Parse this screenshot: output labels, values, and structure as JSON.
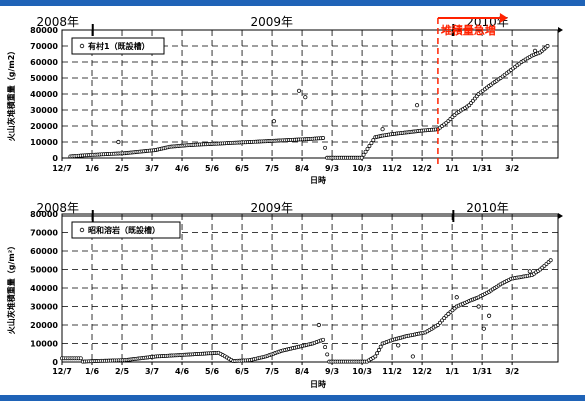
{
  "colors": {
    "band": "#1f63b7",
    "grid": "#000000",
    "marker": "#000000",
    "annotation": "#ff2200"
  },
  "years": [
    "2008年",
    "2009年",
    "2010年"
  ],
  "x_ticks": [
    "12/7",
    "1/6",
    "2/5",
    "3/7",
    "4/6",
    "5/6",
    "6/5",
    "7/5",
    "8/4",
    "9/3",
    "10/3",
    "11/2",
    "12/2",
    "1/1",
    "1/31",
    "3/2"
  ],
  "chart_data": [
    {
      "type": "scatter",
      "xlabel": "日時",
      "ylabel": "火山灰堆積重量（g/m2）",
      "legend": "有村1（既設槽）",
      "legend_position": "top-left",
      "ylim": [
        0,
        80000
      ],
      "y_ticks": [
        "0",
        "10000",
        "20000",
        "30000",
        "40000",
        "50000",
        "60000",
        "70000",
        "80000"
      ],
      "xlim": [
        "2008-12-07",
        "2010-03-27"
      ],
      "grid": true,
      "annotation": {
        "text": "堆積量急増",
        "date": "2009-12-02"
      },
      "series": [
        {
          "x": [
            "2008-12-15",
            "2008-12-25",
            "2009-01-06",
            "2009-01-20",
            "2009-02-05",
            "2009-02-20",
            "2009-03-07",
            "2009-03-20",
            "2009-04-06",
            "2009-04-20",
            "2009-05-06",
            "2009-05-20",
            "2009-06-05",
            "2009-06-20",
            "2009-07-05",
            "2009-07-20",
            "2009-08-04",
            "2009-08-14",
            "2009-08-18",
            "2009-09-03",
            "2009-09-20",
            "2009-10-03",
            "2009-10-10",
            "2009-10-20",
            "2009-11-02",
            "2009-11-15",
            "2009-12-02",
            "2009-12-10",
            "2009-12-20",
            "2010-01-01",
            "2010-01-10",
            "2010-01-20",
            "2010-01-31",
            "2010-02-10",
            "2010-02-20",
            "2010-03-02",
            "2010-03-10",
            "2010-03-17"
          ],
          "y": [
            1000,
            1500,
            2000,
            2500,
            3000,
            4000,
            5000,
            7000,
            8000,
            8500,
            9000,
            9500,
            10000,
            10500,
            11000,
            11500,
            12000,
            12500,
            200,
            200,
            200,
            13000,
            14000,
            15000,
            16000,
            17000,
            18000,
            22000,
            28000,
            33000,
            40000,
            45000,
            50000,
            55000,
            60000,
            64000,
            66000,
            70000
          ]
        }
      ],
      "outliers": {
        "x": [
          "2009-01-30",
          "2009-06-28",
          "2009-07-22",
          "2009-07-28",
          "2009-10-10",
          "2009-11-12",
          "2010-03-05"
        ],
        "y": [
          10000,
          23000,
          42000,
          38000,
          18000,
          33000,
          67000
        ]
      }
    },
    {
      "type": "scatter",
      "xlabel": "日時",
      "ylabel": "火山灰堆積重量（g/m²）",
      "legend": "昭和溶岩（既設槽）",
      "legend_position": "top-left",
      "ylim": [
        0,
        80000
      ],
      "y_ticks": [
        "0",
        "10000",
        "20000",
        "30000",
        "40000",
        "50000",
        "60000",
        "70000",
        "80000"
      ],
      "xlim": [
        "2008-12-07",
        "2010-03-27"
      ],
      "grid": true,
      "series": [
        {
          "x": [
            "2008-12-07",
            "2008-12-25",
            "2008-12-27",
            "2009-01-06",
            "2009-02-05",
            "2009-03-07",
            "2009-04-06",
            "2009-05-06",
            "2009-05-20",
            "2009-06-05",
            "2009-06-20",
            "2009-07-05",
            "2009-07-20",
            "2009-08-04",
            "2009-08-14",
            "2009-08-20",
            "2009-09-03",
            "2009-09-25",
            "2009-10-03",
            "2009-10-10",
            "2009-10-20",
            "2009-11-02",
            "2009-11-20",
            "2009-12-02",
            "2009-12-10",
            "2009-12-20",
            "2010-01-01",
            "2010-01-10",
            "2010-01-20",
            "2010-01-31",
            "2010-02-10",
            "2010-02-20",
            "2010-03-02",
            "2010-03-10",
            "2010-03-20"
          ],
          "y": [
            2000,
            2000,
            200,
            500,
            1000,
            3000,
            4000,
            5000,
            500,
            1000,
            3000,
            6000,
            8000,
            10000,
            12000,
            200,
            200,
            200,
            3000,
            10000,
            12000,
            14000,
            16000,
            20000,
            25000,
            30000,
            33000,
            35000,
            38000,
            42000,
            45000,
            46000,
            47000,
            50000,
            55000
          ]
        }
      ],
      "outliers": {
        "x": [
          "2009-08-10",
          "2009-10-25",
          "2009-11-08",
          "2009-12-12",
          "2009-12-20",
          "2010-01-10",
          "2010-01-15",
          "2010-01-20",
          "2010-02-28"
        ],
        "y": [
          20000,
          9000,
          3000,
          26000,
          35000,
          30000,
          18000,
          25000,
          49000
        ]
      }
    }
  ]
}
